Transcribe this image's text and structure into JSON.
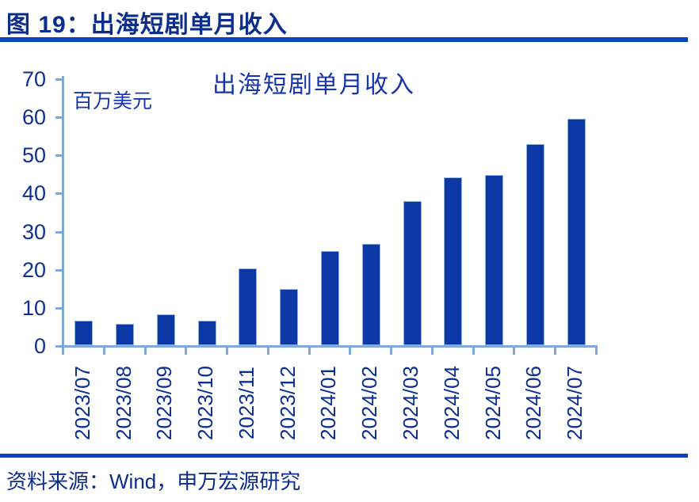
{
  "header": {
    "figure_label": "图 19：出海短剧单月收入"
  },
  "footer": {
    "source_text": "资料来源：Wind，申万宏源研究"
  },
  "chart_data": {
    "type": "bar",
    "title": "出海短剧单月收入",
    "unit_label": "百万美元",
    "ylabel": "百万美元",
    "xlabel": "",
    "categories": [
      "2023/07",
      "2023/08",
      "2023/09",
      "2023/10",
      "2023/11",
      "2023/12",
      "2024/01",
      "2024/02",
      "2024/03",
      "2024/04",
      "2024/05",
      "2024/06",
      "2024/07"
    ],
    "values": [
      6.4,
      5.7,
      8.0,
      6.5,
      20.1,
      14.8,
      24.7,
      26.6,
      37.9,
      44.1,
      44.7,
      52.7,
      59.4
    ],
    "ylim": [
      0,
      70
    ],
    "yticks": [
      0,
      10,
      20,
      30,
      40,
      50,
      60,
      70
    ],
    "grid": false,
    "legend": "none",
    "colors": {
      "bar": "#0b38a5",
      "axis": "#7fa9dc",
      "label": "#0d2f92",
      "title": "#1736ae",
      "heading": "#0b2d8c",
      "rule": "#0545c0"
    }
  }
}
